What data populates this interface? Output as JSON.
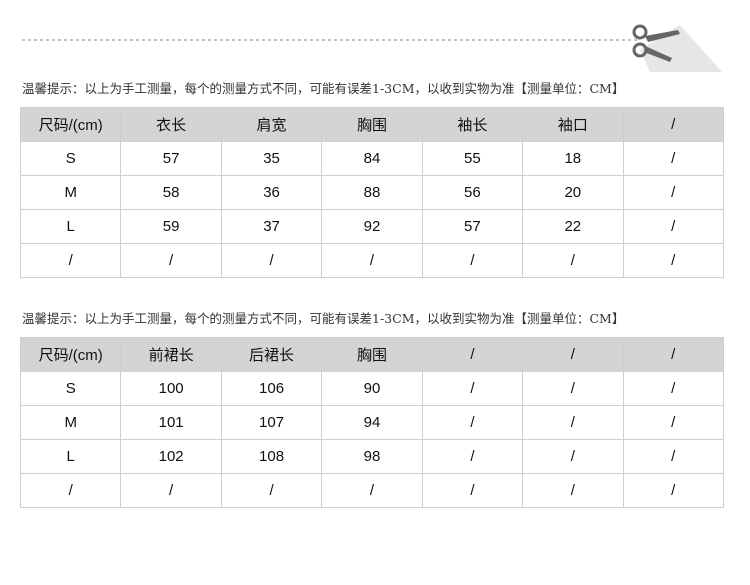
{
  "tables": [
    {
      "note": "温馨提示：以上为手工测量，每个的测量方式不同，可能有误差1-3CM，以收到实物为准【测量单位：CM】",
      "header": [
        "尺码/(cm)",
        "衣长",
        "肩宽",
        "胸围",
        "袖长",
        "袖口",
        "/"
      ],
      "rows": [
        [
          "S",
          57,
          35,
          84,
          55,
          18,
          "/"
        ],
        [
          "M",
          58,
          36,
          88,
          56,
          20,
          "/"
        ],
        [
          "L",
          59,
          37,
          92,
          57,
          22,
          "/"
        ],
        [
          "/",
          "/",
          "/",
          "/",
          "/",
          "/",
          "/"
        ]
      ]
    },
    {
      "note": "温馨提示：以上为手工测量，每个的测量方式不同，可能有误差1-3CM，以收到实物为准【测量单位：CM】",
      "header": [
        "尺码/(cm)",
        "前裙长",
        "后裙长",
        "胸围",
        "/",
        "/",
        "/"
      ],
      "rows": [
        [
          "S",
          100,
          106,
          90,
          "/",
          "/",
          "/"
        ],
        [
          "M",
          101,
          107,
          94,
          "/",
          "/",
          "/"
        ],
        [
          "L",
          102,
          108,
          98,
          "/",
          "/",
          "/"
        ],
        [
          "/",
          "/",
          "/",
          "/",
          "/",
          "/",
          "/"
        ]
      ]
    }
  ]
}
